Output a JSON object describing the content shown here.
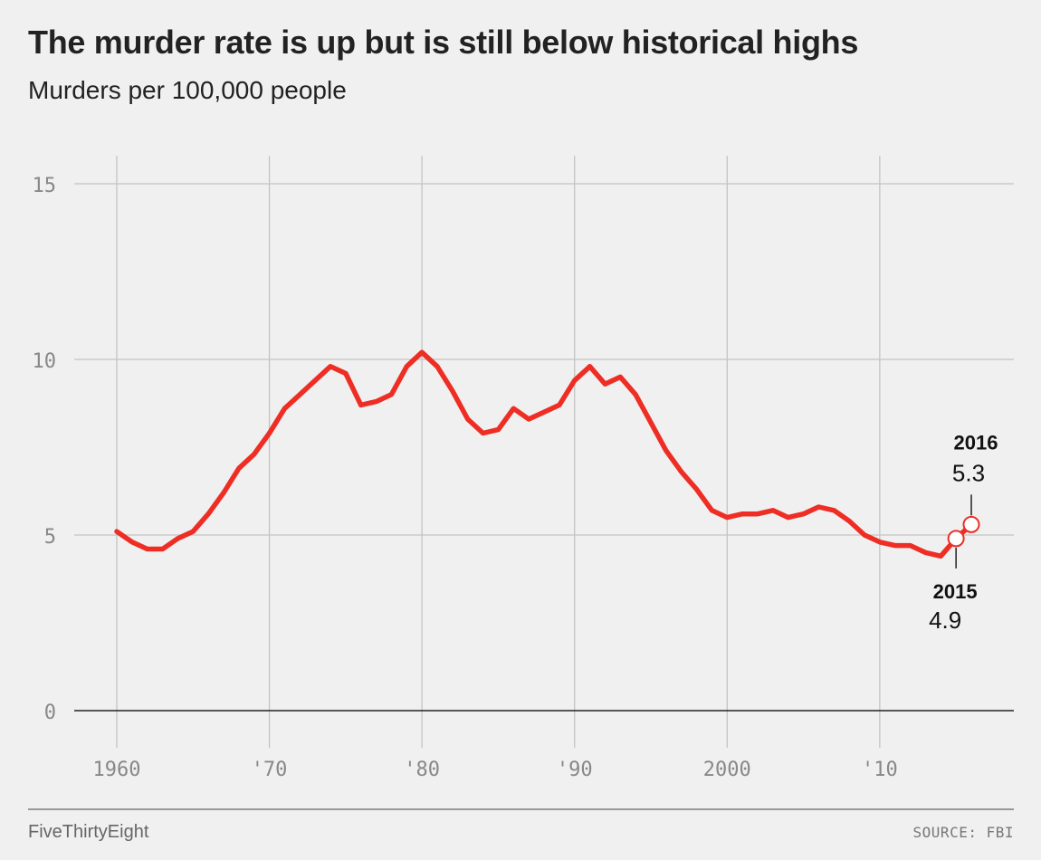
{
  "header": {
    "title": "The murder rate is up but is still below historical highs",
    "subtitle": "Murders per 100,000 people"
  },
  "footer": {
    "brand": "FiveThirtyEight",
    "source": "SOURCE: FBI"
  },
  "colors": {
    "background": "#f0f0f0",
    "line": "#ee2e24",
    "grid": "#c4c4c4",
    "axis": "#222222",
    "tick_text": "#888888"
  },
  "chart_data": {
    "type": "line",
    "title": "The murder rate is up but is still below historical highs",
    "subtitle": "Murders per 100,000 people",
    "xlabel": "",
    "ylabel": "",
    "xlim": [
      1960,
      2016
    ],
    "ylim": [
      0,
      15
    ],
    "x_ticks": [
      {
        "value": 1960,
        "label": "1960"
      },
      {
        "value": 1970,
        "label": "'70"
      },
      {
        "value": 1980,
        "label": "'80"
      },
      {
        "value": 1990,
        "label": "'90"
      },
      {
        "value": 2000,
        "label": "2000"
      },
      {
        "value": 2010,
        "label": "'10"
      }
    ],
    "y_ticks": [
      {
        "value": 0,
        "label": "0"
      },
      {
        "value": 5,
        "label": "5"
      },
      {
        "value": 10,
        "label": "10"
      },
      {
        "value": 15,
        "label": "15"
      }
    ],
    "grid": true,
    "series": [
      {
        "x": [
          1960,
          1961,
          1962,
          1963,
          1964,
          1965,
          1966,
          1967,
          1968,
          1969,
          1970,
          1971,
          1972,
          1973,
          1974,
          1975,
          1976,
          1977,
          1978,
          1979,
          1980,
          1981,
          1982,
          1983,
          1984,
          1985,
          1986,
          1987,
          1988,
          1989,
          1990,
          1991,
          1992,
          1993,
          1994,
          1995,
          1996,
          1997,
          1998,
          1999,
          2000,
          2001,
          2002,
          2003,
          2004,
          2005,
          2006,
          2007,
          2008,
          2009,
          2010,
          2011,
          2012,
          2013,
          2014,
          2015,
          2016
        ],
        "values": [
          5.1,
          4.8,
          4.6,
          4.6,
          4.9,
          5.1,
          5.6,
          6.2,
          6.9,
          7.3,
          7.9,
          8.6,
          9.0,
          9.4,
          9.8,
          9.6,
          8.7,
          8.8,
          9.0,
          9.8,
          10.2,
          9.8,
          9.1,
          8.3,
          7.9,
          8.0,
          8.6,
          8.3,
          8.5,
          8.7,
          9.4,
          9.8,
          9.3,
          9.5,
          9.0,
          8.2,
          7.4,
          6.8,
          6.3,
          5.7,
          5.5,
          5.6,
          5.6,
          5.7,
          5.5,
          5.6,
          5.8,
          5.7,
          5.4,
          5.0,
          4.8,
          4.7,
          4.7,
          4.5,
          4.4,
          4.9,
          5.3
        ]
      }
    ],
    "annotations": [
      {
        "year": 2015,
        "year_label": "2015",
        "value": 4.9,
        "value_label": "4.9",
        "placement": "below"
      },
      {
        "year": 2016,
        "year_label": "2016",
        "value": 5.3,
        "value_label": "5.3",
        "placement": "above"
      }
    ]
  }
}
